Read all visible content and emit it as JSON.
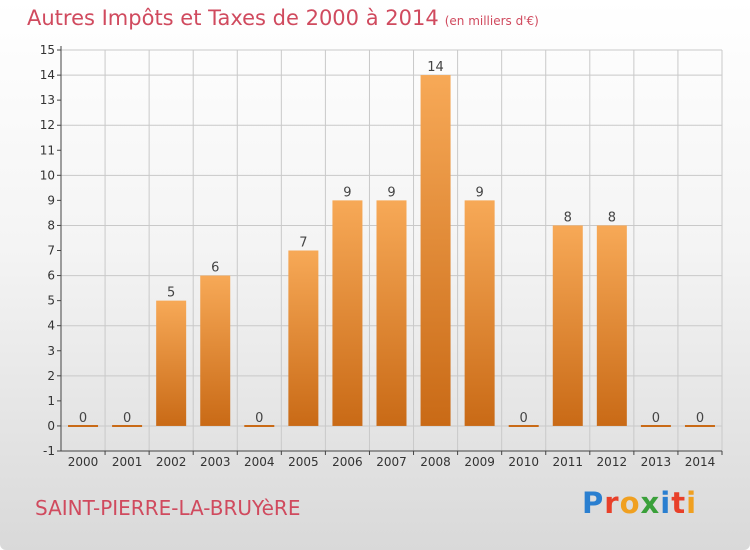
{
  "header": {
    "title": "Autres Impôts et Taxes de 2000 à 2014",
    "unit": "(en milliers d'€)"
  },
  "footer": {
    "commune": "SAINT-PIERRE-LA-BRUYèRE",
    "logo": "Proxiti"
  },
  "colors": {
    "bar_top": "#f7a957",
    "bar_bottom": "#c96a16",
    "title": "#d04a5e",
    "grid": "#c9c9c9"
  },
  "chart_data": {
    "type": "bar",
    "title": "Autres Impôts et Taxes de 2000 à 2014",
    "unit": "(en milliers d'€)",
    "categories": [
      "2000",
      "2001",
      "2002",
      "2003",
      "2004",
      "2005",
      "2006",
      "2007",
      "2008",
      "2009",
      "2010",
      "2011",
      "2012",
      "2013",
      "2014"
    ],
    "values": [
      0,
      0,
      5,
      6,
      0,
      7,
      9,
      9,
      14,
      9,
      0,
      8,
      8,
      0,
      0
    ],
    "ylim": [
      -1,
      15
    ],
    "yticks": [
      -1,
      0,
      1,
      2,
      3,
      4,
      5,
      6,
      7,
      8,
      9,
      10,
      11,
      12,
      13,
      14,
      15
    ],
    "grid": true,
    "legend": "none"
  }
}
